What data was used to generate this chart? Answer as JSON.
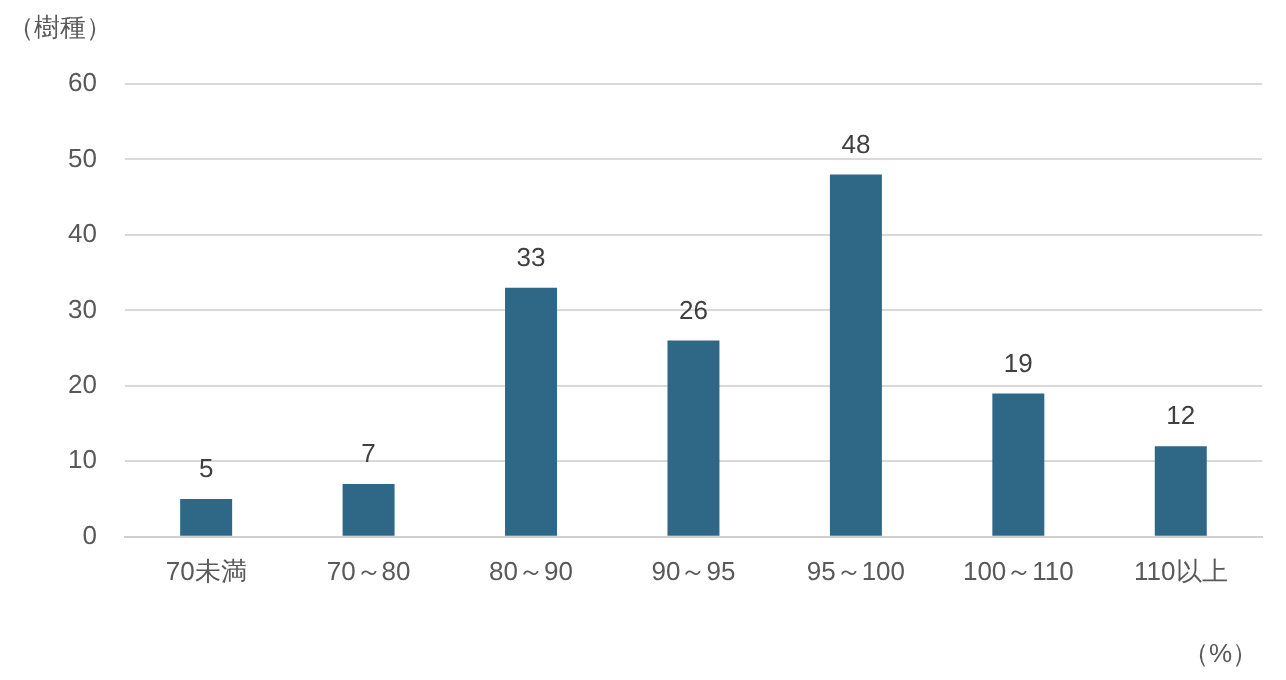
{
  "chart_data": {
    "type": "bar",
    "ylabel": "（樹種）",
    "xlabel": "（%）",
    "categories": [
      "70未満",
      "70～80",
      "80～90",
      "90～95",
      "95～100",
      "100～110",
      "110以上"
    ],
    "values": [
      5,
      7,
      33,
      26,
      48,
      19,
      12
    ],
    "color": "#2e6886",
    "ylim": [
      0,
      60
    ],
    "yticks": [
      0,
      10,
      20,
      30,
      40,
      50,
      60
    ],
    "grid": "y",
    "data_labels": true,
    "legend": false
  }
}
